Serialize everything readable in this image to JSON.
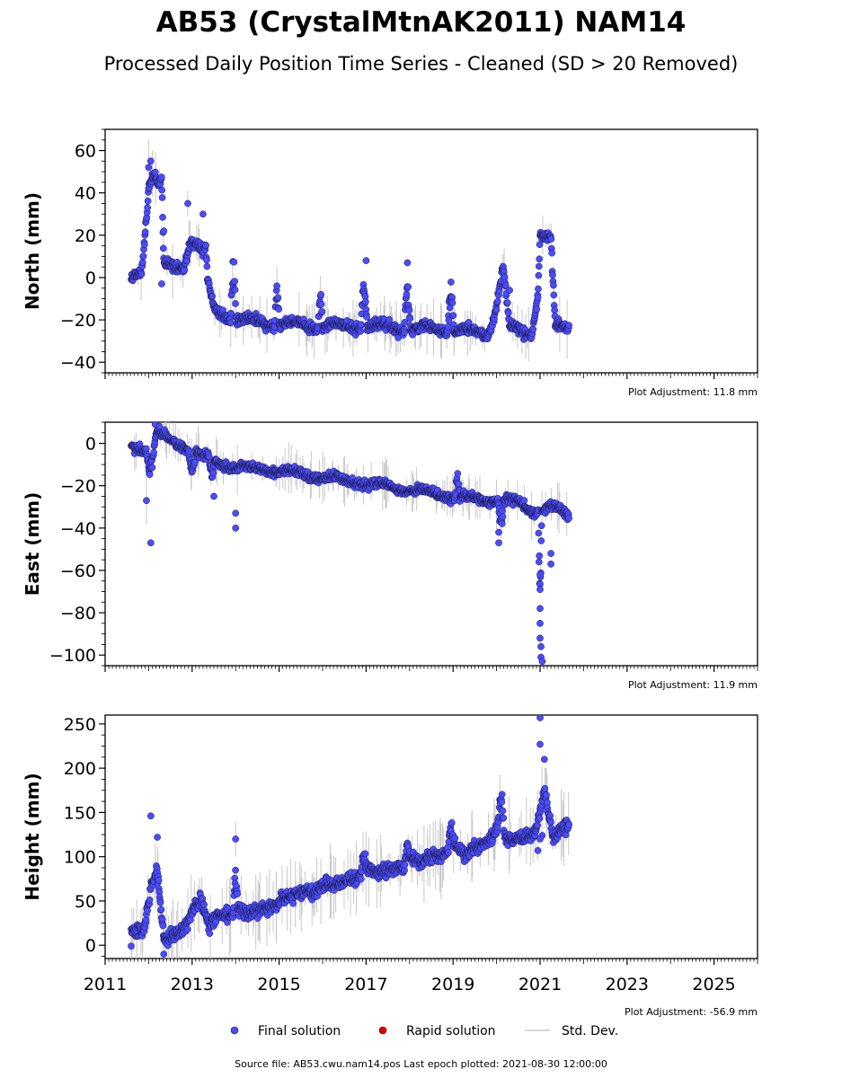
{
  "chart_data": {
    "type": "scatter",
    "title": "AB53 (CrystalMtnAK2011) NAM14",
    "subtitle": "Processed Daily Position Time Series - Cleaned (SD > 20 Removed)",
    "x_ticks": [
      "2011",
      "2013",
      "2015",
      "2017",
      "2019",
      "2021",
      "2023",
      "2025"
    ],
    "xlim": [
      2011,
      2026
    ],
    "first_epoch": 2011.6,
    "last_epoch_plotted": "2021-08-30 12:00:00",
    "source_file": "AB53.cwu.nam14.pos",
    "source_line": "Source file: AB53.cwu.nam14.pos  Last epoch plotted: 2021-08-30 12:00:00",
    "legend": [
      {
        "label": "Final solution",
        "color": "#4b4bff",
        "kind": "marker"
      },
      {
        "label": "Rapid solution",
        "color": "#dd0000",
        "kind": "marker"
      },
      {
        "label": "Std. Dev.",
        "color": "#cccccc",
        "kind": "line"
      }
    ],
    "marker_color": "#4b4bff",
    "marker_edge": "#1a1a40",
    "errorbar_color": "#c8c8c8",
    "panels": [
      {
        "name": "North",
        "ylabel": "North (mm)",
        "ylim": [
          -45,
          70
        ],
        "y_ticks": [
          -40,
          -20,
          0,
          20,
          40,
          60
        ],
        "y_tick_labels": [
          "−40",
          "−20",
          "0",
          "20",
          "40",
          "60"
        ],
        "adjustment": "Plot Adjustment: 11.8 mm",
        "trend": [
          [
            2011.6,
            0
          ],
          [
            2011.85,
            5
          ],
          [
            2012.0,
            42
          ],
          [
            2012.3,
            45
          ],
          [
            2012.35,
            6
          ],
          [
            2012.8,
            5
          ],
          [
            2012.95,
            18
          ],
          [
            2013.2,
            14
          ],
          [
            2013.5,
            -15
          ],
          [
            2014.0,
            -20
          ],
          [
            2015.0,
            -22
          ],
          [
            2016.0,
            -23
          ],
          [
            2017.0,
            -23
          ],
          [
            2018.0,
            -24
          ],
          [
            2019.0,
            -25
          ],
          [
            2019.8,
            -26
          ],
          [
            2019.95,
            -18
          ],
          [
            2020.15,
            5
          ],
          [
            2020.3,
            -24
          ],
          [
            2020.8,
            -27
          ],
          [
            2020.95,
            -8
          ],
          [
            2021.0,
            20
          ],
          [
            2021.25,
            18
          ],
          [
            2021.35,
            -24
          ],
          [
            2021.67,
            -24
          ]
        ],
        "seasonal_amp": 1.5,
        "noise": 1.6,
        "spikes": [
          {
            "center": 2012.1,
            "width": 0.12,
            "height": 6
          },
          {
            "center": 2013.95,
            "width": 0.06,
            "height": 30
          },
          {
            "center": 2014.95,
            "width": 0.05,
            "height": 20
          },
          {
            "center": 2015.95,
            "width": 0.05,
            "height": 18
          },
          {
            "center": 2016.95,
            "width": 0.07,
            "height": 24
          },
          {
            "center": 2017.95,
            "width": 0.07,
            "height": 22
          },
          {
            "center": 2018.95,
            "width": 0.07,
            "height": 24
          },
          {
            "center": 2013.3,
            "width": 0.05,
            "height": 14
          }
        ],
        "outliers": [
          [
            2012.05,
            55
          ],
          [
            2012.0,
            52
          ],
          [
            2012.9,
            35
          ],
          [
            2013.25,
            30
          ],
          [
            2012.35,
            22
          ],
          [
            2012.3,
            -3
          ],
          [
            2017.95,
            7
          ],
          [
            2017.0,
            8
          ],
          [
            2020.3,
            -6
          ]
        ]
      },
      {
        "name": "East",
        "ylabel": "East (mm)",
        "ylim": [
          -105,
          10
        ],
        "y_ticks": [
          -100,
          -80,
          -60,
          -40,
          -20,
          0
        ],
        "y_tick_labels": [
          "−100",
          "−80",
          "−60",
          "−40",
          "−20",
          "0"
        ],
        "adjustment": "Plot Adjustment: 11.9 mm",
        "trend": [
          [
            2011.6,
            -1
          ],
          [
            2012.0,
            -3
          ],
          [
            2012.2,
            5
          ],
          [
            2012.5,
            1
          ],
          [
            2013.0,
            -3
          ],
          [
            2013.5,
            -9
          ],
          [
            2014.0,
            -11
          ],
          [
            2015.0,
            -13
          ],
          [
            2016.0,
            -16
          ],
          [
            2017.0,
            -19
          ],
          [
            2018.0,
            -22
          ],
          [
            2019.0,
            -25
          ],
          [
            2020.0,
            -27
          ],
          [
            2020.5,
            -28
          ],
          [
            2020.9,
            -32
          ],
          [
            2021.3,
            -30
          ],
          [
            2021.67,
            -34
          ]
        ],
        "seasonal_amp": 1.2,
        "noise": 1.4,
        "spikes": [
          {
            "center": 2012.05,
            "width": 0.1,
            "height": -12
          },
          {
            "center": 2013.0,
            "width": 0.08,
            "height": -10
          },
          {
            "center": 2013.45,
            "width": 0.06,
            "height": -8
          },
          {
            "center": 2019.1,
            "width": 0.05,
            "height": 10
          },
          {
            "center": 2020.1,
            "width": 0.06,
            "height": -14
          },
          {
            "center": 2021.0,
            "width": 0.04,
            "height": -40
          }
        ],
        "outliers": [
          [
            2011.95,
            -27
          ],
          [
            2012.05,
            -47
          ],
          [
            2012.15,
            9
          ],
          [
            2012.25,
            8
          ],
          [
            2014.0,
            -33
          ],
          [
            2014.0,
            -40
          ],
          [
            2013.5,
            -25
          ],
          [
            2020.05,
            -42
          ],
          [
            2020.05,
            -47
          ],
          [
            2021.0,
            -62
          ],
          [
            2021.0,
            -69
          ],
          [
            2021.0,
            -78
          ],
          [
            2021.0,
            -85
          ],
          [
            2021.0,
            -92
          ],
          [
            2021.02,
            -96
          ],
          [
            2021.02,
            -101
          ],
          [
            2021.05,
            -103
          ],
          [
            2021.25,
            -52
          ],
          [
            2021.25,
            -57
          ]
        ]
      },
      {
        "name": "Height",
        "ylabel": "Height (mm)",
        "ylim": [
          -15,
          260
        ],
        "y_ticks": [
          0,
          50,
          100,
          150,
          200,
          250
        ],
        "y_tick_labels": [
          "0",
          "50",
          "100",
          "150",
          "200",
          "250"
        ],
        "adjustment": "Plot Adjustment: -56.9 mm",
        "trend": [
          [
            2011.6,
            15
          ],
          [
            2011.9,
            25
          ],
          [
            2012.05,
            65
          ],
          [
            2012.2,
            80
          ],
          [
            2012.35,
            0
          ],
          [
            2012.6,
            10
          ],
          [
            2013.0,
            40
          ],
          [
            2013.2,
            50
          ],
          [
            2013.4,
            15
          ],
          [
            2013.6,
            35
          ],
          [
            2014.0,
            45
          ],
          [
            2014.3,
            30
          ],
          [
            2015.0,
            55
          ],
          [
            2015.3,
            50
          ],
          [
            2016.0,
            72
          ],
          [
            2016.3,
            62
          ],
          [
            2017.0,
            90
          ],
          [
            2017.3,
            75
          ],
          [
            2018.0,
            100
          ],
          [
            2018.3,
            88
          ],
          [
            2019.0,
            118
          ],
          [
            2019.3,
            95
          ],
          [
            2020.0,
            135
          ],
          [
            2020.3,
            110
          ],
          [
            2020.9,
            135
          ],
          [
            2021.1,
            175
          ],
          [
            2021.3,
            115
          ],
          [
            2021.67,
            140
          ]
        ],
        "seasonal_amp": 6,
        "noise": 5,
        "spikes": [
          {
            "center": 2014.0,
            "width": 0.05,
            "height": 40
          },
          {
            "center": 2016.95,
            "width": 0.06,
            "height": 20
          },
          {
            "center": 2017.95,
            "width": 0.06,
            "height": 20
          },
          {
            "center": 2018.95,
            "width": 0.06,
            "height": 25
          },
          {
            "center": 2020.1,
            "width": 0.08,
            "height": 45
          }
        ],
        "outliers": [
          [
            2011.6,
            -1
          ],
          [
            2012.05,
            146
          ],
          [
            2012.2,
            122
          ],
          [
            2012.35,
            -10
          ],
          [
            2014.0,
            120
          ],
          [
            2021.0,
            257
          ],
          [
            2021.0,
            227
          ],
          [
            2021.1,
            210
          ],
          [
            2021.05,
            124
          ],
          [
            2020.95,
            107
          ],
          [
            2021.0,
            120
          ]
        ]
      }
    ]
  }
}
